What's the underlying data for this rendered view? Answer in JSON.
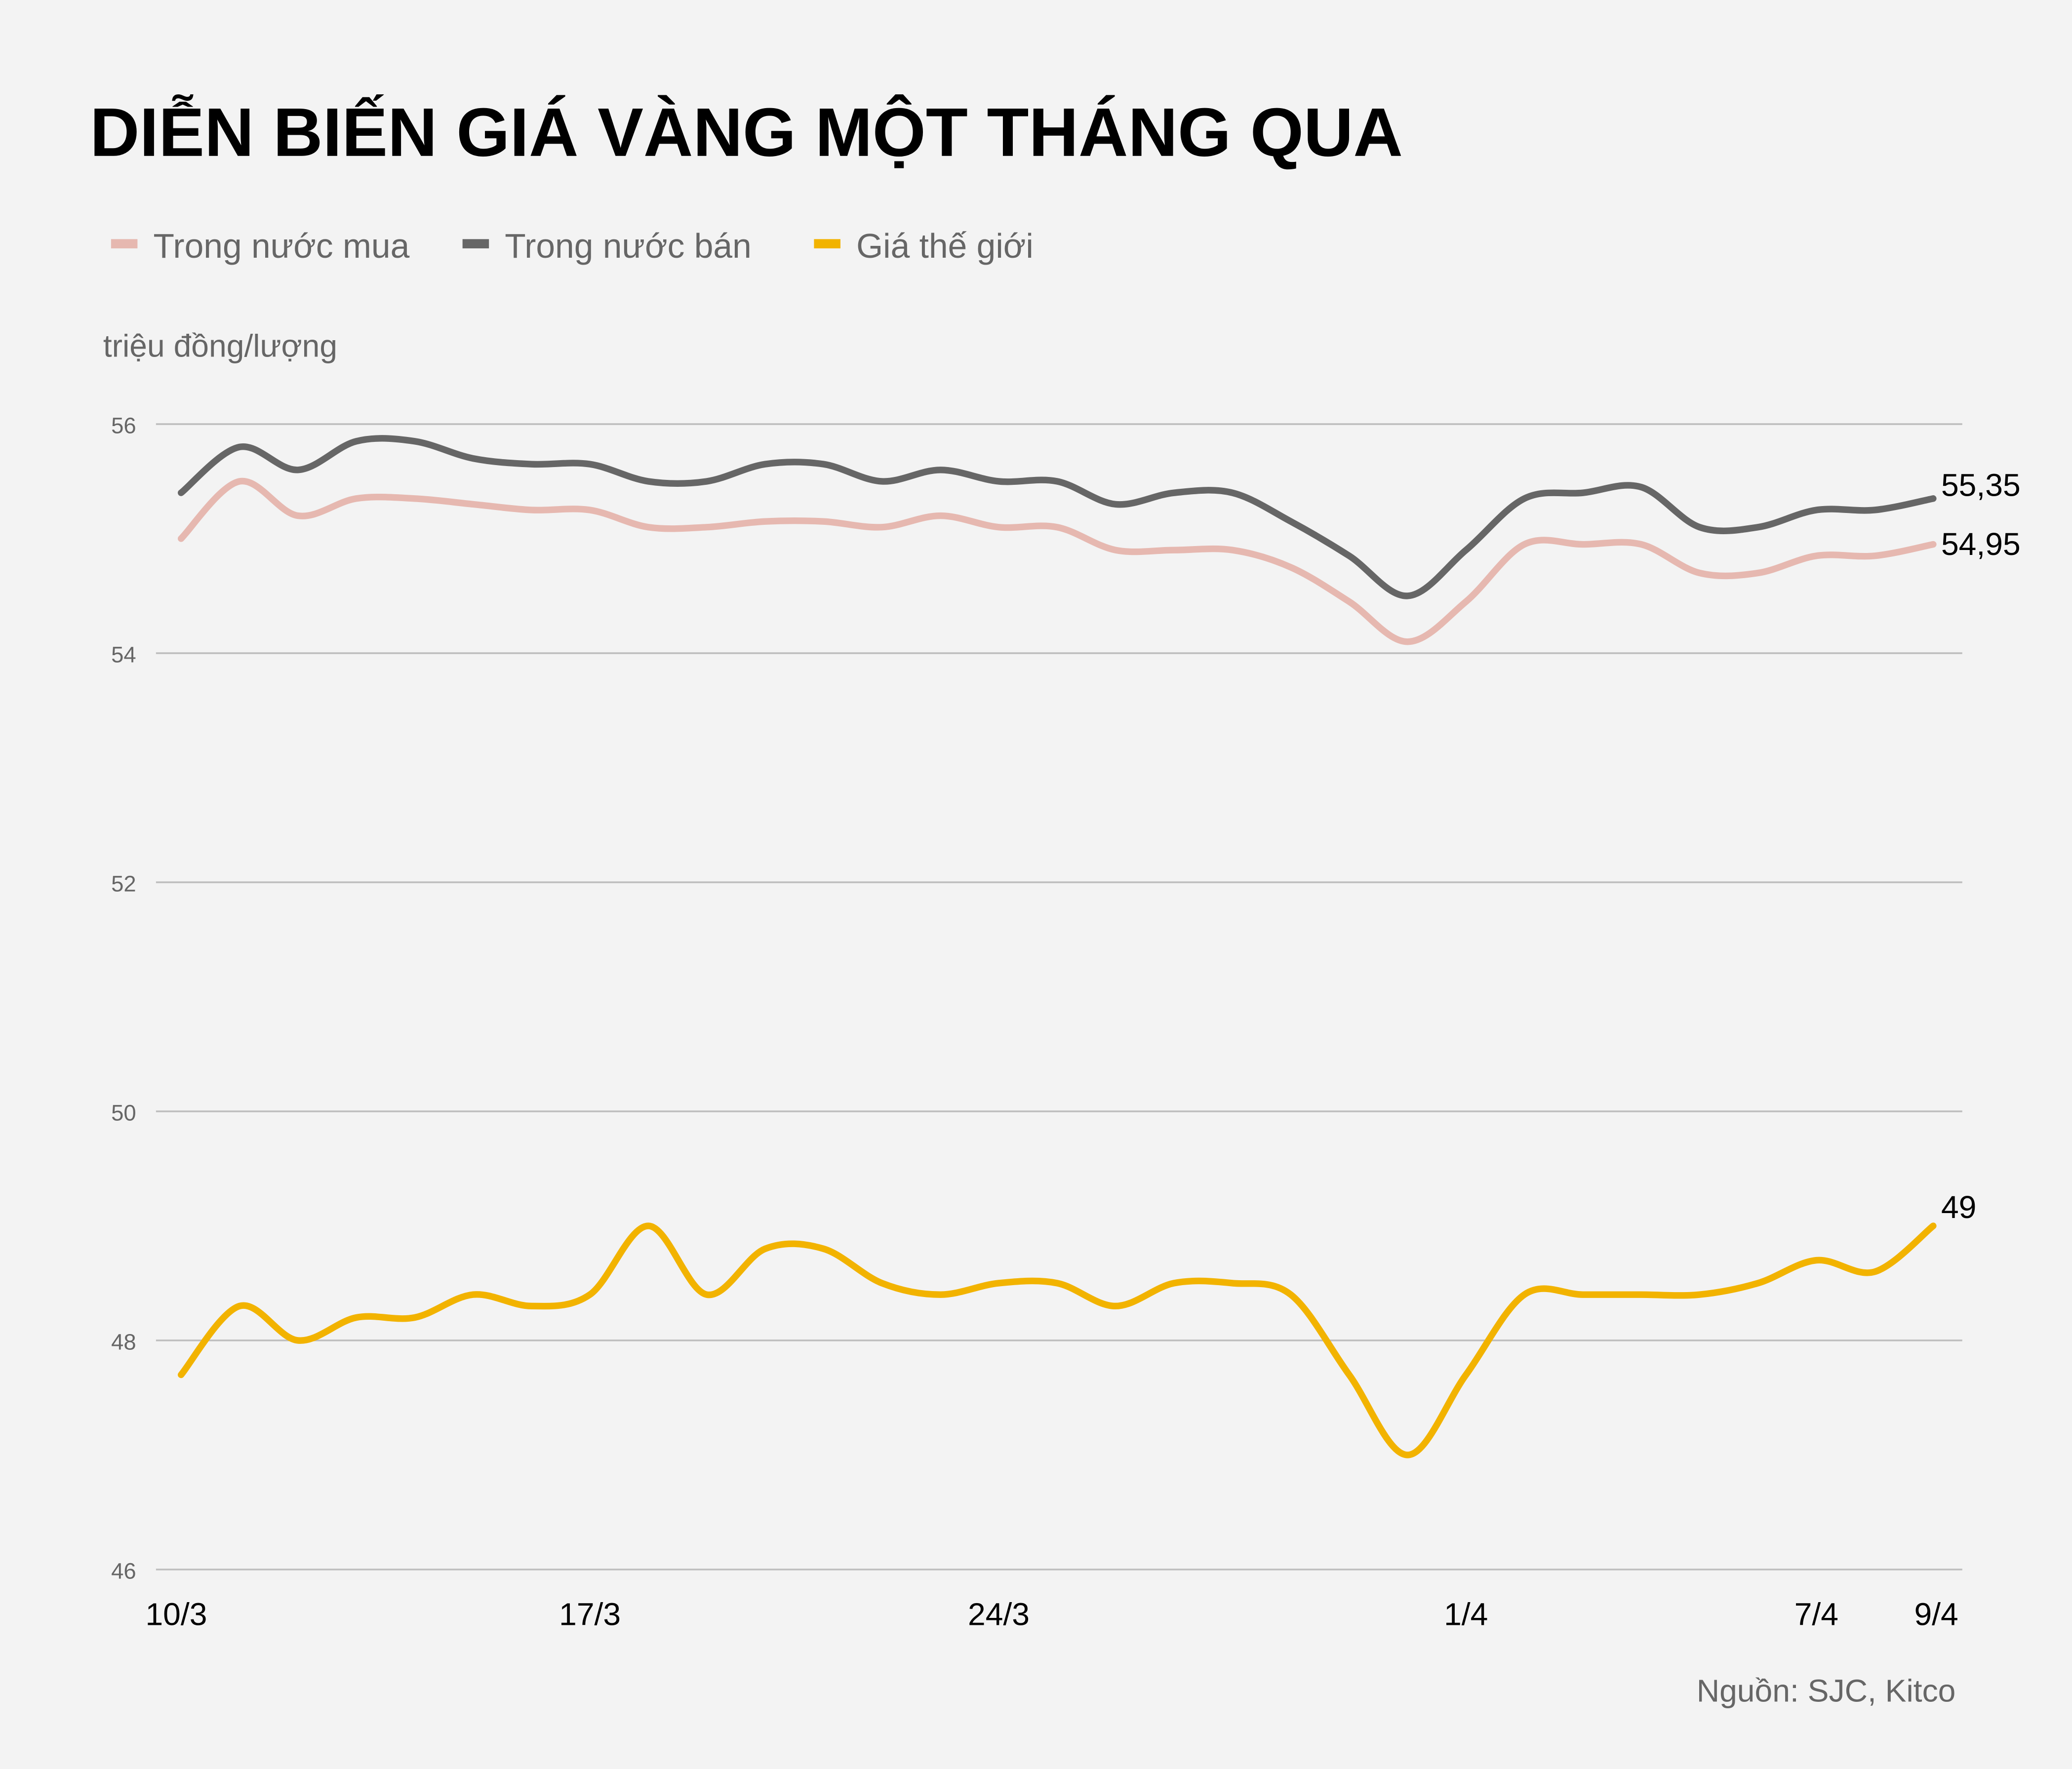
{
  "chart_data": {
    "type": "line",
    "title": "DIỄN BIẾN GIÁ VÀNG MỘT THÁNG QUA",
    "ylabel": "triệu đồng/lượng",
    "xlabel": "",
    "source": "Nguồn: SJC, Kitco",
    "ylim": [
      46,
      56
    ],
    "yticks": [
      "46",
      "48",
      "50",
      "52",
      "54",
      "56"
    ],
    "ytick_values": [
      46,
      48,
      50,
      52,
      54,
      56
    ],
    "xticks": [
      {
        "label": "10/3",
        "day": 0
      },
      {
        "label": "17/3",
        "day": 7
      },
      {
        "label": "24/3",
        "day": 14
      },
      {
        "label": "1/4",
        "day": 22
      },
      {
        "label": "7/4",
        "day": 28
      },
      {
        "label": "9/4",
        "day": 30
      }
    ],
    "x_days": [
      0,
      1,
      2,
      3,
      4,
      5,
      6,
      7,
      8,
      9,
      10,
      11,
      12,
      13,
      14,
      15,
      16,
      17,
      18,
      19,
      20,
      21,
      22,
      23,
      24,
      25,
      26,
      27,
      28,
      29,
      30
    ],
    "grid": true,
    "legend_position": "top-left",
    "series": [
      {
        "name": "Trong nước mua",
        "color": "#e6b8b0",
        "end_label": "54,95",
        "values": [
          55.0,
          55.5,
          55.2,
          55.35,
          55.35,
          55.3,
          55.25,
          55.25,
          55.1,
          55.1,
          55.15,
          55.15,
          55.1,
          55.2,
          55.1,
          55.1,
          54.9,
          54.9,
          54.9,
          54.75,
          54.45,
          54.1,
          54.45,
          54.95,
          54.95,
          54.95,
          54.7,
          54.7,
          54.85,
          54.85,
          54.95
        ]
      },
      {
        "name": "Trong nước bán",
        "color": "#666666",
        "end_label": "55,35",
        "values": [
          55.4,
          55.8,
          55.6,
          55.85,
          55.85,
          55.7,
          55.65,
          55.65,
          55.5,
          55.5,
          55.65,
          55.65,
          55.5,
          55.6,
          55.5,
          55.5,
          55.3,
          55.4,
          55.4,
          55.15,
          54.85,
          54.5,
          54.9,
          55.35,
          55.4,
          55.45,
          55.1,
          55.1,
          55.25,
          55.25,
          55.35
        ]
      },
      {
        "name": "Giá thế giới",
        "color": "#f2b300",
        "end_label": "49",
        "values": [
          47.7,
          48.3,
          48.0,
          48.2,
          48.2,
          48.4,
          48.3,
          48.4,
          49.0,
          48.4,
          48.8,
          48.8,
          48.5,
          48.4,
          48.5,
          48.5,
          48.3,
          48.5,
          48.5,
          48.4,
          47.7,
          47.0,
          47.7,
          48.4,
          48.4,
          48.4,
          48.4,
          48.5,
          48.7,
          48.6,
          49.0
        ]
      }
    ]
  }
}
